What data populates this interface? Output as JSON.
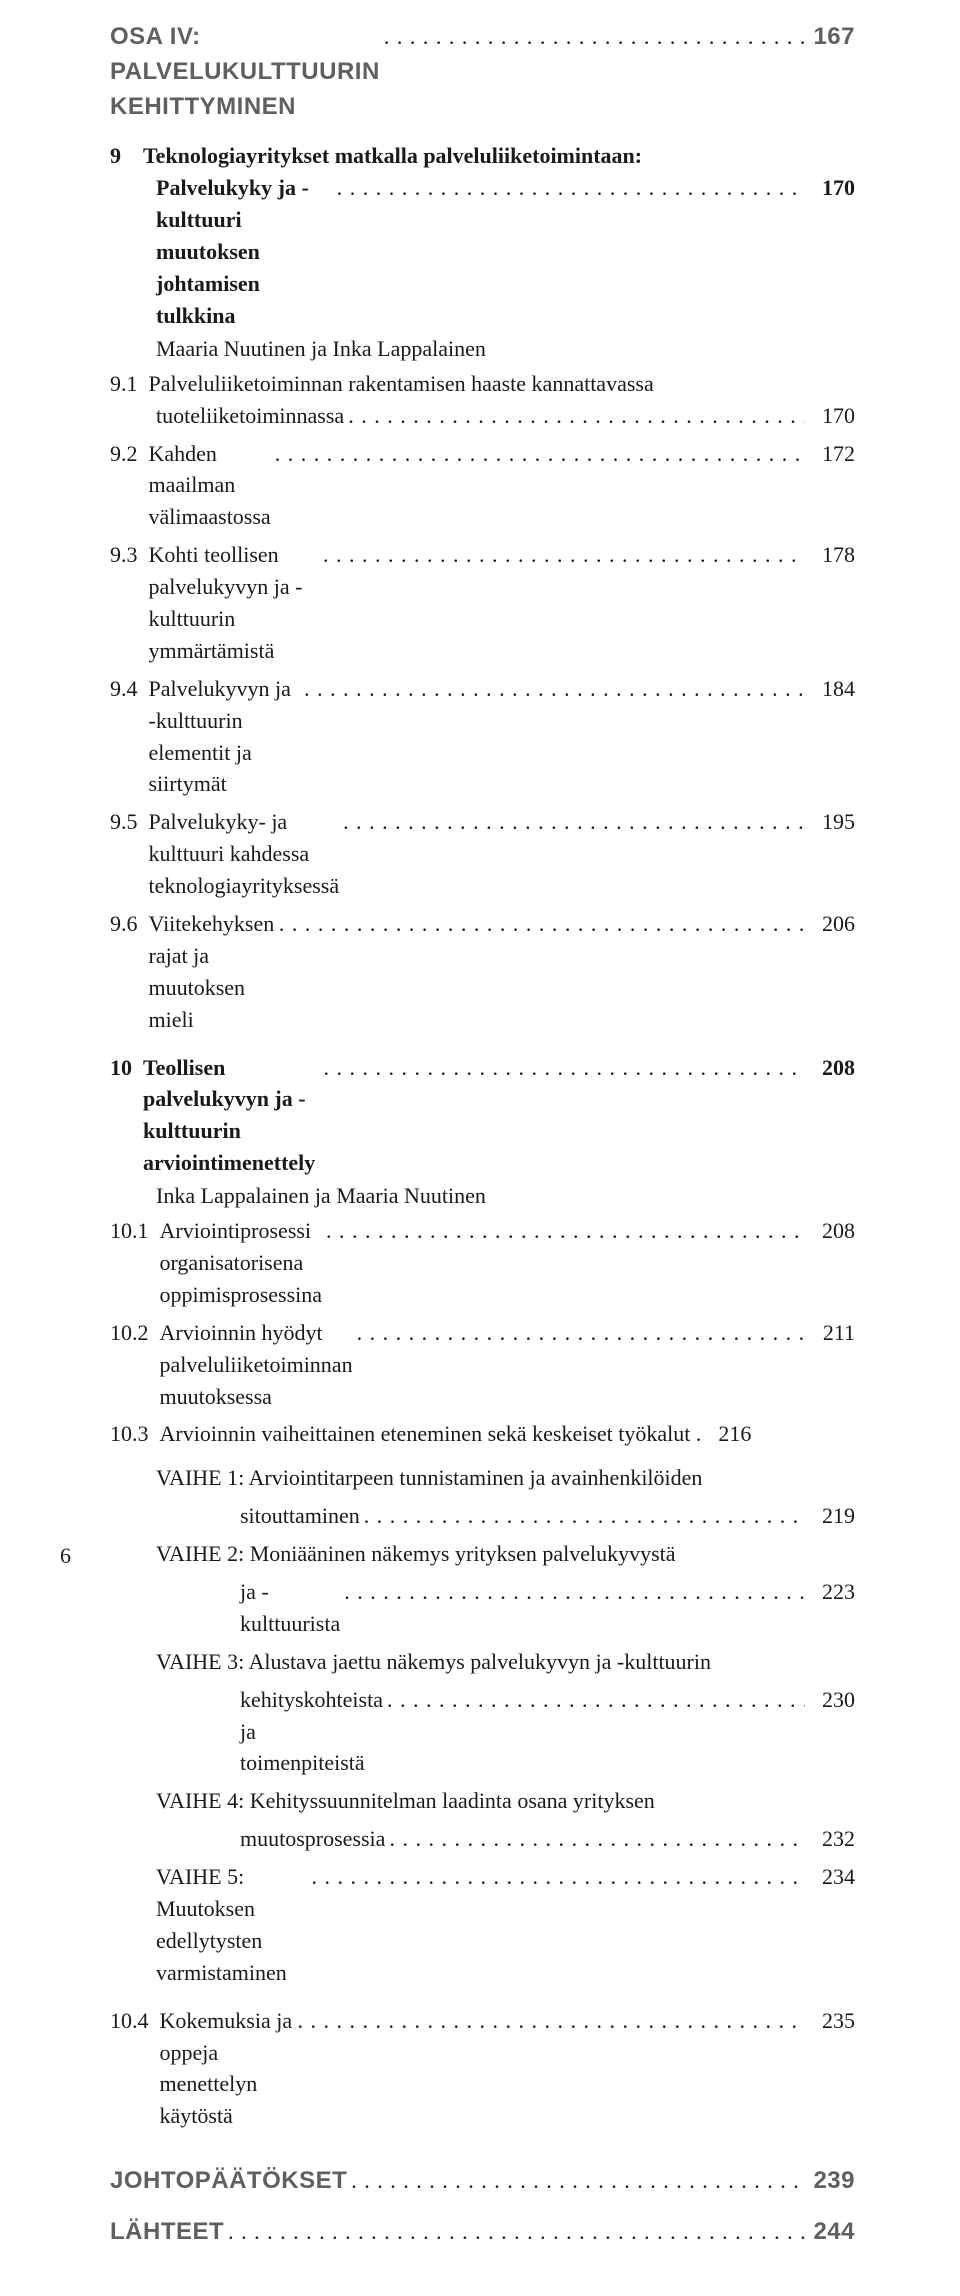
{
  "dots": ". . . . . . . . . . . . . . . . . . . . . . . . . . . . . . . . . . . . . . . . . . . . . . . . . . . . . . . . . . . . . . . . . . . . . . . . . . . . . . . . . . . . . . . . . . . . . . . . . . . . . . . . . . . . . .",
  "part": {
    "label": "OSA IV: PALVELUKULTTUURIN KEHITTYMINEN",
    "page": "167"
  },
  "ch9": {
    "num": "9",
    "title_l1": "Teknologiayritykset matkalla palveluliiketoimintaan:",
    "title_l2": "Palvelukyky ja -kulttuuri muutoksen johtamisen tulkkina",
    "page": "170",
    "author": "Maaria Nuutinen ja Inka Lappalainen",
    "s1": {
      "num": "9.1",
      "l1": "Palveluliiketoiminnan rakentamisen haaste kannattavassa",
      "l2": "tuoteliiketoiminnassa",
      "page": "170"
    },
    "s2": {
      "num": "9.2",
      "text": "Kahden maailman välimaastossa",
      "page": "172"
    },
    "s3": {
      "num": "9.3",
      "text": "Kohti teollisen palvelukyvyn ja -kulttuurin ymmärtämistä",
      "page": "178"
    },
    "s4": {
      "num": "9.4",
      "text": "Palvelukyvyn ja -kulttuurin elementit ja siirtymät",
      "page": "184"
    },
    "s5": {
      "num": "9.5",
      "text": "Palvelukyky- ja kulttuuri kahdessa teknologiayrityksessä",
      "page": "195"
    },
    "s6": {
      "num": "9.6",
      "text": "Viitekehyksen rajat ja muutoksen mieli",
      "page": "206"
    }
  },
  "ch10": {
    "num": "10",
    "title": "Teollisen palvelukyvyn ja -kulttuurin arviointimenettely",
    "page": "208",
    "author": "Inka Lappalainen ja Maaria Nuutinen",
    "s1": {
      "num": "10.1",
      "text": "Arviointiprosessi organisatorisena oppimisprosessina",
      "page": "208"
    },
    "s2": {
      "num": "10.2",
      "text": "Arvioinnin hyödyt palveluliiketoiminnan muutoksessa",
      "page": "211"
    },
    "s3": {
      "num": "10.3",
      "text": "Arvioinnin vaiheittainen eteneminen sekä keskeiset työkalut .",
      "page": "216"
    },
    "v1": {
      "l1": "VAIHE 1: Arviointitarpeen tunnistaminen ja avainhenkilöiden",
      "l2": "sitouttaminen",
      "page": "219"
    },
    "v2": {
      "l1": "VAIHE 2: Moniääninen näkemys yrityksen palvelukyvystä",
      "l2": "ja  -kulttuurista",
      "page": "223"
    },
    "v3": {
      "l1": "VAIHE 3: Alustava jaettu näkemys palvelukyvyn ja -kulttuurin",
      "l2": "kehityskohteista ja toimenpiteistä",
      "page": "230"
    },
    "v4": {
      "l1": "VAIHE 4: Kehityssuunnitelman laadinta osana yrityksen",
      "l2": "muutosprosessia",
      "page": "232"
    },
    "v5": {
      "text": "VAIHE 5: Muutoksen edellytysten varmistaminen",
      "page": "234"
    },
    "s4": {
      "num": "10.4",
      "text": "Kokemuksia ja oppeja menettelyn käytöstä",
      "page": "235"
    }
  },
  "conclusions": {
    "label": "JOHTOPÄÄTÖKSET",
    "page": "239"
  },
  "references": {
    "label": "LÄHTEET",
    "page": "244"
  },
  "folio": "6"
}
